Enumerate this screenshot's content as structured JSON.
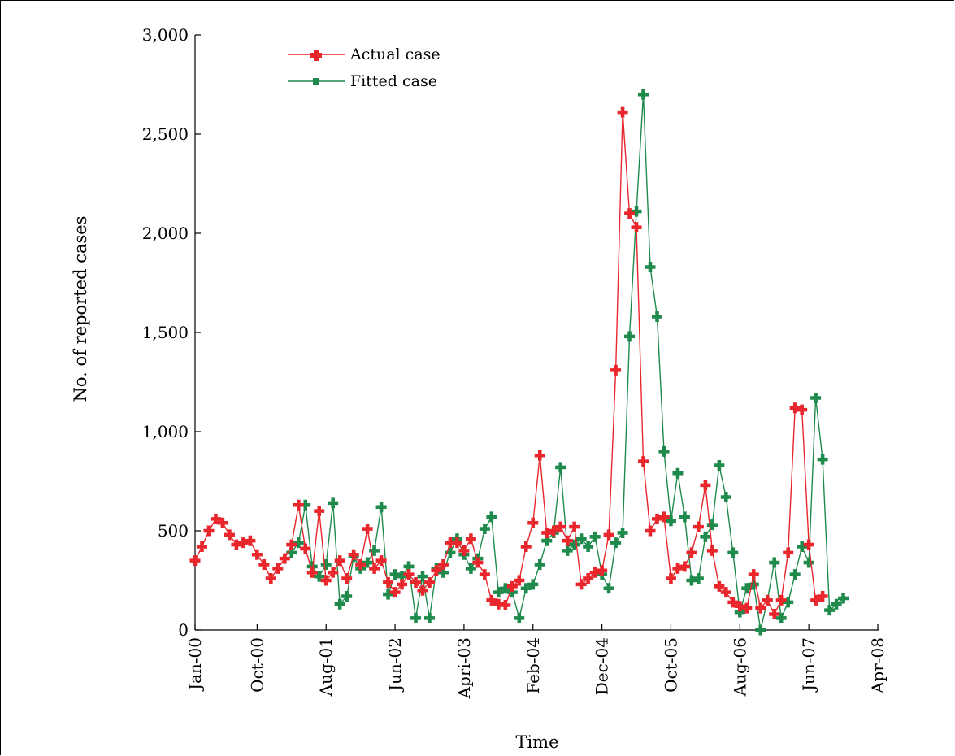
{
  "chart_data": {
    "type": "line",
    "title": "",
    "xlabel": "Time",
    "ylabel": "No. of reported cases",
    "ylim": [
      0,
      3000
    ],
    "yticks": [
      0,
      500,
      1000,
      1500,
      2000,
      2500,
      3000
    ],
    "ytick_labels": [
      "0",
      "500",
      "1,000",
      "1,500",
      "2,000",
      "2,500",
      "3,000"
    ],
    "xlim": [
      0,
      99
    ],
    "xticks": [
      0,
      9,
      19,
      29,
      39,
      49,
      59,
      69,
      79,
      89,
      99
    ],
    "xtick_labels": [
      "Jan-00",
      "Oct-00",
      "Aug-01",
      "Jun-02",
      "Apri-03",
      "Feb-04",
      "Dec-04",
      "Oct-05",
      "Aug-06",
      "Jun-07",
      "Apr-08"
    ],
    "x_unit": "month index starting Jan-00",
    "legend": {
      "position": "top-left"
    },
    "grid": false,
    "series": [
      {
        "name": "Actual case",
        "color": "#e8262c",
        "values": [
          350,
          420,
          500,
          560,
          540,
          480,
          430,
          440,
          450,
          380,
          330,
          260,
          310,
          360,
          430,
          630,
          410,
          290,
          600,
          250,
          290,
          350,
          260,
          380,
          330,
          510,
          310,
          350,
          240,
          190,
          230,
          280,
          240,
          200,
          240,
          300,
          330,
          440,
          440,
          400,
          460,
          340,
          280,
          150,
          130,
          125,
          220,
          250,
          420,
          540,
          880,
          490,
          500,
          520,
          450,
          520,
          230,
          260,
          290,
          300,
          480,
          1310,
          2610,
          2100,
          2030,
          850,
          500,
          560,
          570,
          260,
          310,
          320,
          390,
          520,
          730,
          400,
          220,
          190,
          140,
          120,
          110,
          280,
          110,
          150,
          80,
          150,
          390,
          1120,
          1110,
          430,
          150,
          170
        ]
      },
      {
        "name": "Fitted case",
        "color": "#1e8a4c",
        "values": [
          null,
          null,
          null,
          null,
          null,
          null,
          null,
          null,
          null,
          null,
          null,
          null,
          null,
          null,
          390,
          440,
          630,
          320,
          270,
          330,
          640,
          130,
          170,
          370,
          310,
          340,
          400,
          620,
          180,
          280,
          270,
          320,
          60,
          270,
          60,
          310,
          290,
          390,
          460,
          380,
          310,
          360,
          510,
          570,
          190,
          210,
          190,
          60,
          210,
          230,
          330,
          450,
          490,
          820,
          400,
          430,
          460,
          420,
          470,
          280,
          210,
          440,
          490,
          1480,
          2110,
          2700,
          1830,
          1580,
          900,
          550,
          790,
          570,
          250,
          260,
          470,
          530,
          830,
          670,
          390,
          90,
          210,
          230,
          0,
          150,
          340,
          60,
          140,
          280,
          420,
          340,
          1170,
          860,
          100,
          130,
          160
        ]
      }
    ]
  }
}
